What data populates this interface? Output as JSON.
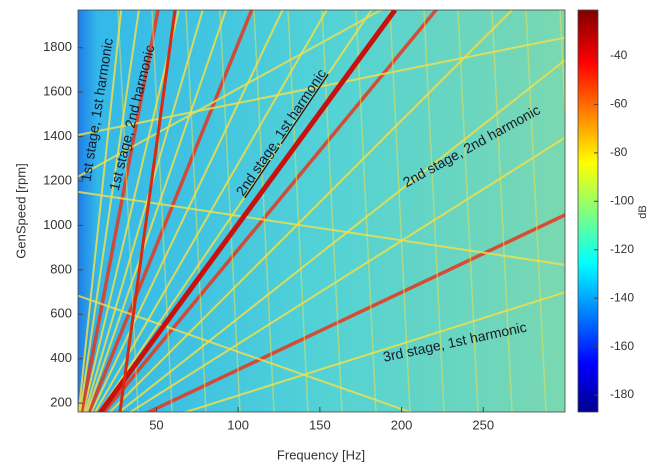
{
  "chart_data": {
    "type": "heatmap",
    "xlabel": "Frequency [Hz]",
    "ylabel": "GenSpeed [rpm]",
    "xlim": [
      2,
      300
    ],
    "xticks": [
      50,
      100,
      150,
      200,
      250
    ],
    "ylim": [
      160,
      1970
    ],
    "yticks": [
      200,
      400,
      600,
      800,
      1000,
      1200,
      1400,
      1600,
      1800
    ],
    "colorbar_label": "dB",
    "clim": [
      -187,
      -21
    ],
    "cticks": [
      -40,
      -60,
      -80,
      -100,
      -120,
      -140,
      -160,
      -180
    ],
    "colormap": "jet",
    "annotations": [
      "1st stage, 1st harmonic",
      "1st stage, 2nd harmonic",
      "2nd stage, 1st harmonic",
      "2nd stage, 2nd harmonic",
      "3rd stage, 1st harmonic"
    ]
  }
}
